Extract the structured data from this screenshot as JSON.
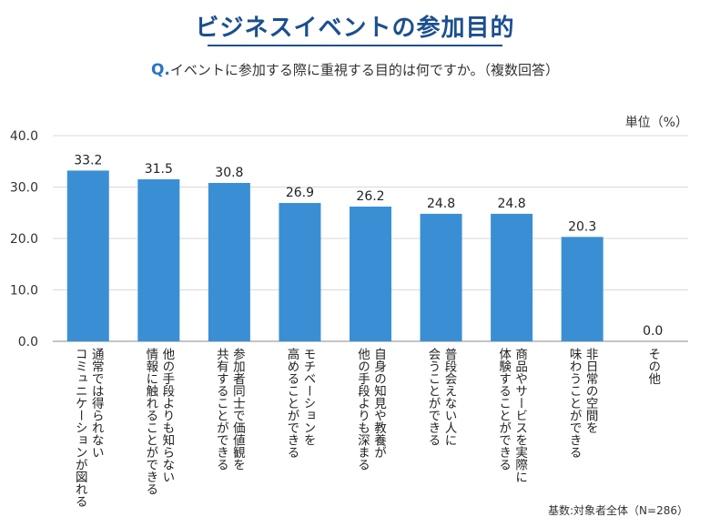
{
  "title": "ビジネスイベントの参加目的",
  "question_prefix": "Q.",
  "question_text": "イベントに参加する際に重視する目的は何ですか。（複数回答）",
  "unit": "単位（%）",
  "footnote": "基数:対象者全体（N=286）",
  "colors": {
    "bar": "#3a8fd4",
    "title": "#1b4f8f",
    "grid": "#d9d9d9",
    "axis": "#888888"
  },
  "chart_data": {
    "type": "bar",
    "title": "ビジネスイベントの参加目的",
    "ylabel": "単位（%）",
    "ylim": [
      0,
      40
    ],
    "yticks": [
      "0.0",
      "10.0",
      "20.0",
      "30.0",
      "40.0"
    ],
    "grid": true,
    "categories": [
      [
        "通常では得られない",
        "コミュニケーションが図れる"
      ],
      [
        "他の手段よりも知らない",
        "情報に触れることができる"
      ],
      [
        "参加者同士で価値観を",
        "共有することができる"
      ],
      [
        "モチベーションを",
        "高めることができる"
      ],
      [
        "自身の知見や教養が",
        "他の手段よりも深まる"
      ],
      [
        "普段会えない人に",
        "会うことができる"
      ],
      [
        "商品やサービスを実際に",
        "体験することができる"
      ],
      [
        "非日常の空間を",
        "味わうことができる"
      ],
      [
        "その他"
      ]
    ],
    "values": [
      33.2,
      31.5,
      30.8,
      26.9,
      26.2,
      24.8,
      24.8,
      20.3,
      0.0
    ],
    "value_labels": [
      "33.2",
      "31.5",
      "30.8",
      "26.9",
      "26.2",
      "24.8",
      "24.8",
      "20.3",
      "0.0"
    ]
  }
}
